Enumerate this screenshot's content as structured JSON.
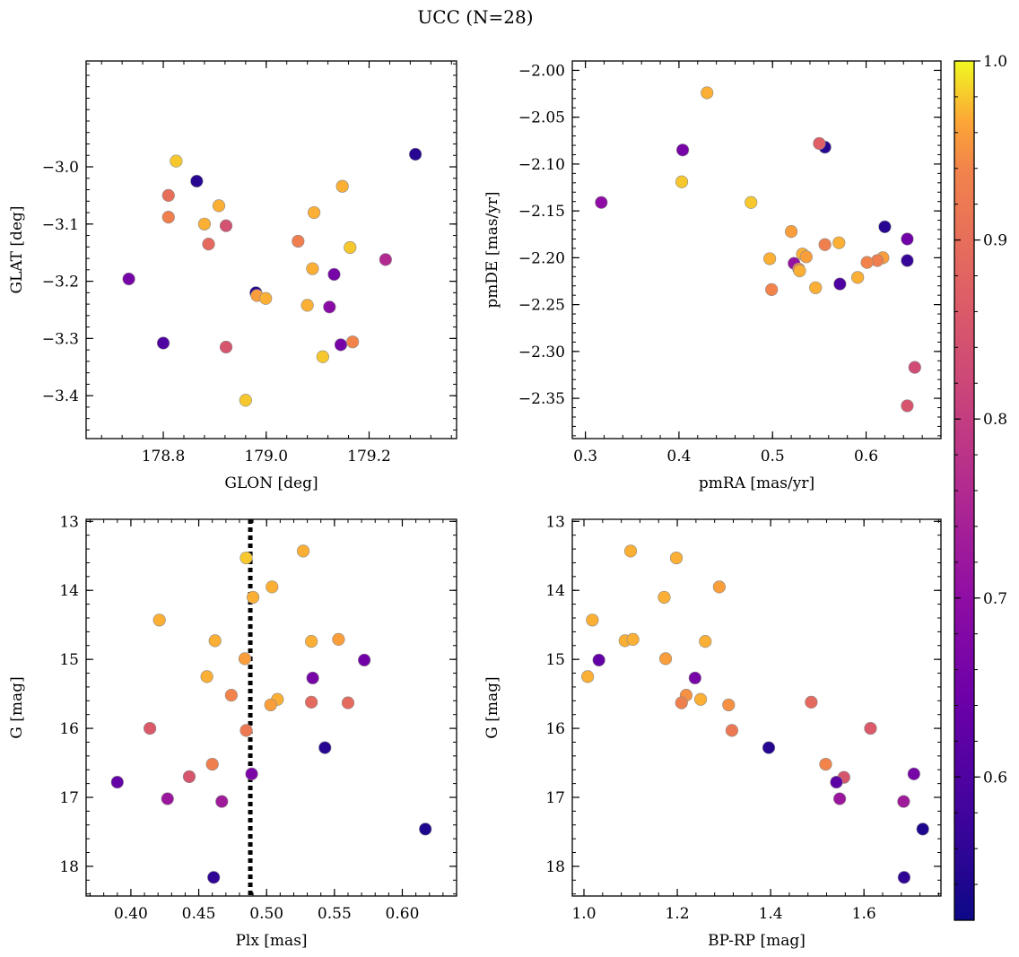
{
  "figure": {
    "title": "UCC (N=28)"
  },
  "colorbar": {
    "min": 0.52,
    "max": 1.0,
    "ticks": [
      "0.6",
      "0.7",
      "0.8",
      "0.9",
      "1.0"
    ],
    "tick_values": [
      0.6,
      0.7,
      0.8,
      0.9,
      1.0
    ],
    "colormap": "plasma"
  },
  "chart_data": [
    {
      "type": "scatter",
      "xlabel": "GLON [deg]",
      "ylabel": "GLAT [deg]",
      "xlim": [
        178.65,
        179.37
      ],
      "ylim": [
        -3.475,
        -2.815
      ],
      "y_inverted": false,
      "xticks": [
        "178.8",
        "179.0",
        "179.2"
      ],
      "xtick_values": [
        178.8,
        179.0,
        179.2
      ],
      "yticks": [
        "−3.0",
        "−3.1",
        "−3.2",
        "−3.3",
        "−3.4"
      ],
      "ytick_values": [
        -3.0,
        -3.1,
        -3.2,
        -3.3,
        -3.4
      ],
      "x": [
        178.825,
        178.865,
        178.81,
        178.908,
        178.81,
        178.88,
        178.922,
        178.888,
        179.062,
        179.148,
        179.093,
        179.163,
        179.29,
        179.09,
        179.232,
        178.733,
        178.98,
        178.982,
        179.132,
        178.999,
        179.08,
        179.123,
        178.8,
        179.145,
        179.168,
        178.922,
        179.11,
        178.96
      ],
      "y": [
        -2.99,
        -3.025,
        -3.05,
        -3.068,
        -3.088,
        -3.1,
        -3.103,
        -3.135,
        -3.13,
        -3.034,
        -3.08,
        -3.141,
        -2.978,
        -3.178,
        -3.162,
        -3.196,
        -3.22,
        -3.225,
        -3.188,
        -3.23,
        -3.242,
        -3.245,
        -3.308,
        -3.311,
        -3.306,
        -3.315,
        -3.332,
        -3.408
      ],
      "c": [
        0.98,
        0.55,
        0.9,
        0.97,
        0.93,
        0.97,
        0.84,
        0.89,
        0.93,
        0.97,
        0.97,
        0.98,
        0.55,
        0.97,
        0.76,
        0.66,
        0.55,
        0.96,
        0.66,
        0.97,
        0.97,
        0.69,
        0.6,
        0.66,
        0.94,
        0.85,
        0.98,
        0.98
      ]
    },
    {
      "type": "scatter",
      "xlabel": "pmRA [mas/yr]",
      "ylabel": "pmDE [mas/yr]",
      "xlim": [
        0.286,
        0.68
      ],
      "ylim": [
        -2.393,
        -1.99
      ],
      "y_inverted": false,
      "xticks": [
        "0.3",
        "0.4",
        "0.5",
        "0.6"
      ],
      "xtick_values": [
        0.3,
        0.4,
        0.5,
        0.6
      ],
      "yticks": [
        "−2.00",
        "−2.05",
        "−2.10",
        "−2.15",
        "−2.20",
        "−2.25",
        "−2.30",
        "−2.35"
      ],
      "ytick_values": [
        -2.0,
        -2.05,
        -2.1,
        -2.15,
        -2.2,
        -2.25,
        -2.3,
        -2.35
      ],
      "x": [
        0.43,
        0.404,
        0.556,
        0.55,
        0.403,
        0.317,
        0.477,
        0.52,
        0.62,
        0.644,
        0.556,
        0.571,
        0.532,
        0.536,
        0.497,
        0.523,
        0.528,
        0.529,
        0.644,
        0.618,
        0.612,
        0.601,
        0.591,
        0.572,
        0.546,
        0.499,
        0.652,
        0.644
      ],
      "y": [
        -2.024,
        -2.085,
        -2.082,
        -2.078,
        -2.119,
        -2.141,
        -2.141,
        -2.172,
        -2.167,
        -2.18,
        -2.186,
        -2.184,
        -2.196,
        -2.199,
        -2.201,
        -2.206,
        -2.212,
        -2.214,
        -2.203,
        -2.2,
        -2.203,
        -2.205,
        -2.221,
        -2.228,
        -2.232,
        -2.234,
        -2.317,
        -2.358
      ],
      "c": [
        0.97,
        0.66,
        0.55,
        0.87,
        0.98,
        0.7,
        0.98,
        0.96,
        0.55,
        0.65,
        0.93,
        0.97,
        0.97,
        0.96,
        0.97,
        0.71,
        0.93,
        0.97,
        0.57,
        0.96,
        0.93,
        0.94,
        0.97,
        0.6,
        0.97,
        0.94,
        0.83,
        0.85
      ]
    },
    {
      "type": "scatter",
      "xlabel": "Plx [mas]",
      "ylabel": "G [mag]",
      "xlim": [
        0.367,
        0.64
      ],
      "ylim": [
        18.43,
        12.97
      ],
      "y_inverted": true,
      "xticks": [
        "0.40",
        "0.45",
        "0.50",
        "0.55",
        "0.60"
      ],
      "xtick_values": [
        0.4,
        0.45,
        0.5,
        0.55,
        0.6
      ],
      "yticks": [
        "13",
        "14",
        "15",
        "16",
        "17",
        "18"
      ],
      "ytick_values": [
        13,
        14,
        15,
        16,
        17,
        18
      ],
      "vline": 0.488,
      "x": [
        0.527,
        0.485,
        0.504,
        0.49,
        0.421,
        0.462,
        0.533,
        0.553,
        0.484,
        0.572,
        0.534,
        0.456,
        0.474,
        0.508,
        0.503,
        0.533,
        0.56,
        0.414,
        0.485,
        0.543,
        0.46,
        0.489,
        0.443,
        0.39,
        0.427,
        0.467,
        0.617,
        0.461
      ],
      "y": [
        13.43,
        13.53,
        13.95,
        14.1,
        14.43,
        14.73,
        14.74,
        14.71,
        14.99,
        15.01,
        15.27,
        15.25,
        15.52,
        15.58,
        15.66,
        15.62,
        15.63,
        16.0,
        16.03,
        16.28,
        16.52,
        16.66,
        16.7,
        16.78,
        17.02,
        17.06,
        17.46,
        18.16
      ],
      "c": [
        0.97,
        0.98,
        0.97,
        0.97,
        0.97,
        0.97,
        0.97,
        0.96,
        0.96,
        0.65,
        0.66,
        0.97,
        0.94,
        0.97,
        0.96,
        0.89,
        0.89,
        0.86,
        0.92,
        0.55,
        0.93,
        0.67,
        0.85,
        0.63,
        0.72,
        0.73,
        0.54,
        0.56
      ]
    },
    {
      "type": "scatter",
      "xlabel": "BP-RP [mag]",
      "ylabel": "G [mag]",
      "xlim": [
        0.975,
        1.765
      ],
      "ylim": [
        18.43,
        12.97
      ],
      "y_inverted": true,
      "xticks": [
        "1.0",
        "1.2",
        "1.4",
        "1.6"
      ],
      "xtick_values": [
        1.0,
        1.2,
        1.4,
        1.6
      ],
      "yticks": [
        "13",
        "14",
        "15",
        "16",
        "17",
        "18"
      ],
      "ytick_values": [
        13,
        14,
        15,
        16,
        17,
        18
      ],
      "x": [
        1.1,
        1.198,
        1.29,
        1.172,
        1.018,
        1.088,
        1.105,
        1.26,
        1.175,
        1.032,
        1.238,
        1.008,
        1.219,
        1.25,
        1.209,
        1.31,
        1.487,
        1.317,
        1.614,
        1.396,
        1.518,
        1.707,
        1.557,
        1.541,
        1.548,
        1.685,
        1.726,
        1.686
      ],
      "y": [
        13.43,
        13.53,
        13.95,
        14.1,
        14.43,
        14.73,
        14.71,
        14.74,
        14.99,
        15.01,
        15.27,
        15.25,
        15.52,
        15.58,
        15.63,
        15.66,
        15.62,
        16.03,
        16.0,
        16.28,
        16.52,
        16.66,
        16.71,
        16.78,
        17.02,
        17.06,
        17.46,
        18.16
      ],
      "c": [
        0.97,
        0.97,
        0.96,
        0.97,
        0.97,
        0.97,
        0.97,
        0.97,
        0.96,
        0.63,
        0.66,
        0.97,
        0.95,
        0.97,
        0.93,
        0.95,
        0.89,
        0.92,
        0.86,
        0.55,
        0.94,
        0.66,
        0.85,
        0.62,
        0.72,
        0.73,
        0.54,
        0.56
      ]
    }
  ]
}
